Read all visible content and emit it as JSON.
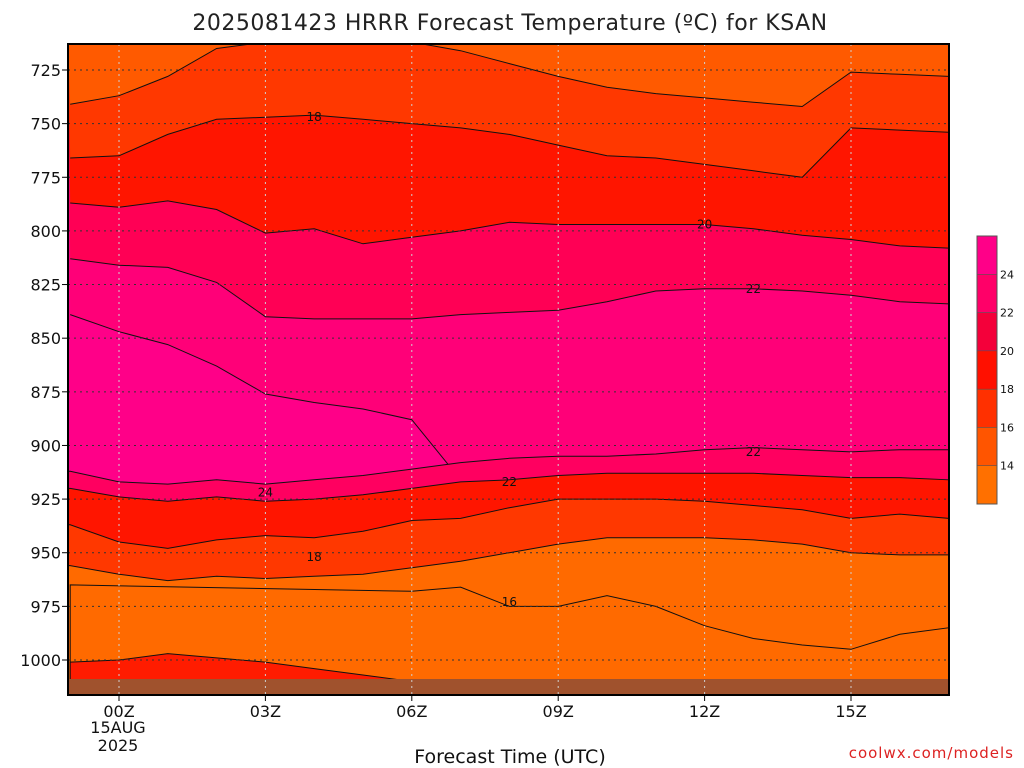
{
  "chart_data": {
    "type": "heatmap",
    "title": "2025081423 HRRR Forecast Temperature (ºC) for KSAN",
    "xlabel": "Forecast Time (UTC)",
    "ylabel": "",
    "x_ticks": [
      "00Z",
      "03Z",
      "06Z",
      "09Z",
      "12Z",
      "15Z"
    ],
    "x_tick_hours": [
      0,
      3,
      6,
      9,
      12,
      15
    ],
    "x_date_label": [
      "15AUG",
      "2025"
    ],
    "xlim_hours": [
      -1,
      17
    ],
    "y_ticks": [
      725,
      750,
      775,
      800,
      825,
      850,
      875,
      900,
      925,
      950,
      975,
      1000
    ],
    "ylim_hpa": [
      1013,
      710
    ],
    "y_scale": "reversed pressure (hPa)",
    "grid": true,
    "colorbar": {
      "levels": [
        12,
        14,
        16,
        18,
        20,
        22,
        24,
        26
      ],
      "tick_labels": [
        "14",
        "16",
        "18",
        "20",
        "22",
        "24"
      ],
      "colors": [
        "#ff7700",
        "#ff6600",
        "#ff4800",
        "#ff1c00",
        "#f4003a",
        "#ff0068",
        "#ff0088"
      ]
    },
    "contour_labels": [
      {
        "value": "18",
        "hour": 4.0,
        "hpa": 747
      },
      {
        "value": "20",
        "hour": 12.0,
        "hpa": 797
      },
      {
        "value": "22",
        "hour": 13.0,
        "hpa": 827
      },
      {
        "value": "22",
        "hour": 13.0,
        "hpa": 903
      },
      {
        "value": "22",
        "hour": 8.0,
        "hpa": 917
      },
      {
        "value": "24",
        "hour": 3.0,
        "hpa": 922
      },
      {
        "value": "18",
        "hour": 4.0,
        "hpa": 952
      },
      {
        "value": "16",
        "hour": 8.0,
        "hpa": 973
      }
    ],
    "terrain_color": "#a0522d",
    "series": [
      {
        "value": 14,
        "hours": [
          -1,
          0,
          1,
          2,
          3,
          4,
          5,
          6,
          7,
          8,
          9,
          10,
          11,
          12,
          13,
          14,
          15,
          16,
          17
        ],
        "hpa": [
          712,
          712,
          712,
          712,
          712,
          712,
          712,
          712,
          712,
          712,
          712,
          712,
          712,
          712,
          712,
          712,
          712,
          712,
          712
        ]
      },
      {
        "value": 16,
        "hours": [
          -1,
          0,
          1,
          2,
          3,
          4,
          5,
          6,
          7,
          8,
          9,
          10,
          11,
          12,
          13,
          14,
          15,
          16,
          17
        ],
        "hpa": [
          741,
          737,
          728,
          715,
          712,
          712,
          712,
          712,
          716,
          722,
          728,
          733,
          736,
          738,
          740,
          742,
          726,
          727,
          728
        ]
      },
      {
        "value": 18,
        "hours": [
          -1,
          0,
          1,
          2,
          3,
          4,
          5,
          6,
          7,
          8,
          9,
          10,
          11,
          12,
          13,
          14,
          15,
          16,
          17
        ],
        "hpa": [
          766,
          765,
          755,
          748,
          747,
          746,
          748,
          750,
          752,
          755,
          760,
          765,
          766,
          769,
          772,
          775,
          752,
          753,
          754
        ]
      },
      {
        "value": 20,
        "hours": [
          -1,
          0,
          1,
          2,
          3,
          4,
          5,
          6,
          7,
          8,
          9,
          10,
          11,
          12,
          13,
          14,
          15,
          16,
          17
        ],
        "hpa": [
          787,
          789,
          786,
          790,
          801,
          799,
          806,
          803,
          800,
          796,
          797,
          797,
          797,
          797,
          799,
          802,
          804,
          807,
          808
        ]
      },
      {
        "value": 22,
        "hours": [
          -1,
          0,
          1,
          2,
          3,
          4,
          5,
          6,
          7,
          8,
          9,
          10,
          11,
          12,
          13,
          14,
          15,
          16,
          17
        ],
        "hpa": [
          813,
          816,
          817,
          824,
          840,
          841,
          841,
          841,
          839,
          838,
          837,
          833,
          828,
          827,
          827,
          828,
          830,
          833,
          834
        ]
      },
      {
        "value": 24,
        "hours": [
          -1,
          0,
          1,
          2,
          3,
          4,
          5,
          6,
          7,
          8,
          9,
          10,
          11,
          12,
          13,
          14,
          15,
          16,
          17
        ],
        "hpa": [
          839,
          847,
          853,
          863,
          876,
          880,
          883,
          888,
          916,
          918,
          920,
          921,
          920,
          917,
          915,
          913,
          912,
          912,
          912
        ]
      }
    ]
  },
  "credit": {
    "text": "coolwx.com/models",
    "color": "#dd2222"
  }
}
